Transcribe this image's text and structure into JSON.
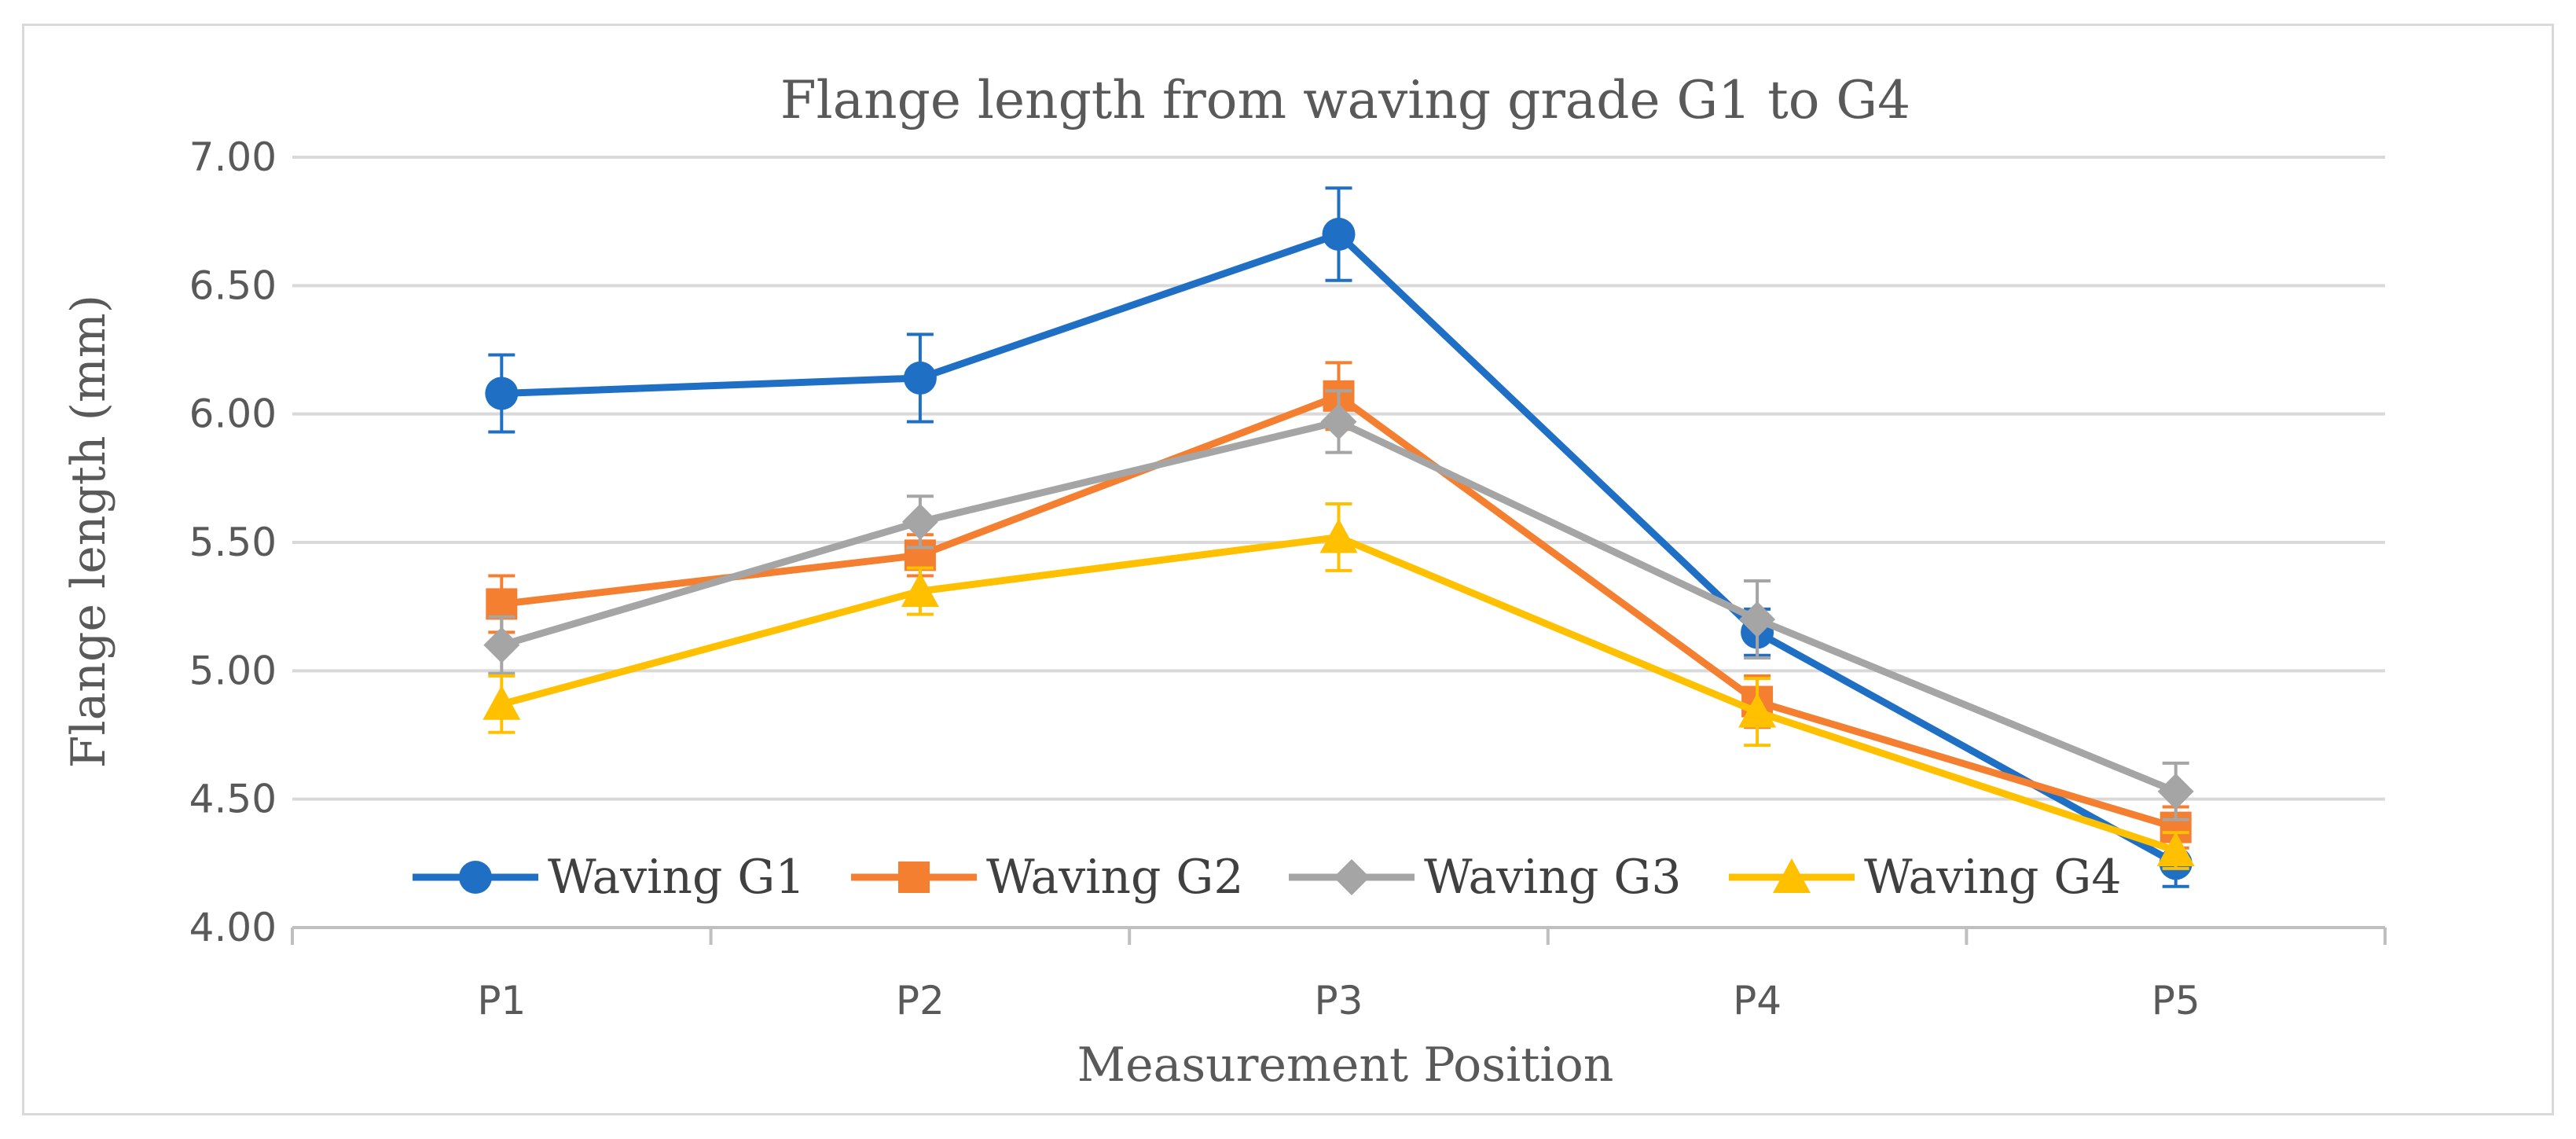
{
  "chart_data": {
    "type": "line",
    "title": "Flange length from waving grade G1 to G4",
    "xlabel": "Measurement Position",
    "ylabel": "Flange length (mm)",
    "categories": [
      "P1",
      "P2",
      "P3",
      "P4",
      "P5"
    ],
    "ylim": [
      4.0,
      7.0
    ],
    "yticks": [
      "4.00",
      "4.50",
      "5.00",
      "5.50",
      "6.00",
      "6.50",
      "7.00"
    ],
    "grid": true,
    "legend_position": "bottom-inside",
    "series": [
      {
        "name": "Waving G1",
        "color": "#1f6fc5",
        "marker": "circle",
        "values": [
          6.08,
          6.14,
          6.7,
          5.15,
          4.25
        ],
        "errors": [
          0.15,
          0.17,
          0.18,
          0.09,
          0.09
        ]
      },
      {
        "name": "Waving G2",
        "color": "#f47f30",
        "marker": "square",
        "values": [
          5.26,
          5.45,
          6.07,
          4.88,
          4.39
        ],
        "errors": [
          0.11,
          0.08,
          0.13,
          0.1,
          0.08
        ]
      },
      {
        "name": "Waving G3",
        "color": "#a5a5a5",
        "marker": "diamond",
        "values": [
          5.1,
          5.58,
          5.97,
          5.2,
          4.53
        ],
        "errors": [
          0.11,
          0.1,
          0.12,
          0.15,
          0.11
        ]
      },
      {
        "name": "Waving G4",
        "color": "#ffc000",
        "marker": "triangle",
        "values": [
          4.87,
          5.31,
          5.52,
          4.84,
          4.3
        ],
        "errors": [
          0.11,
          0.09,
          0.13,
          0.13,
          0.07
        ]
      }
    ]
  }
}
